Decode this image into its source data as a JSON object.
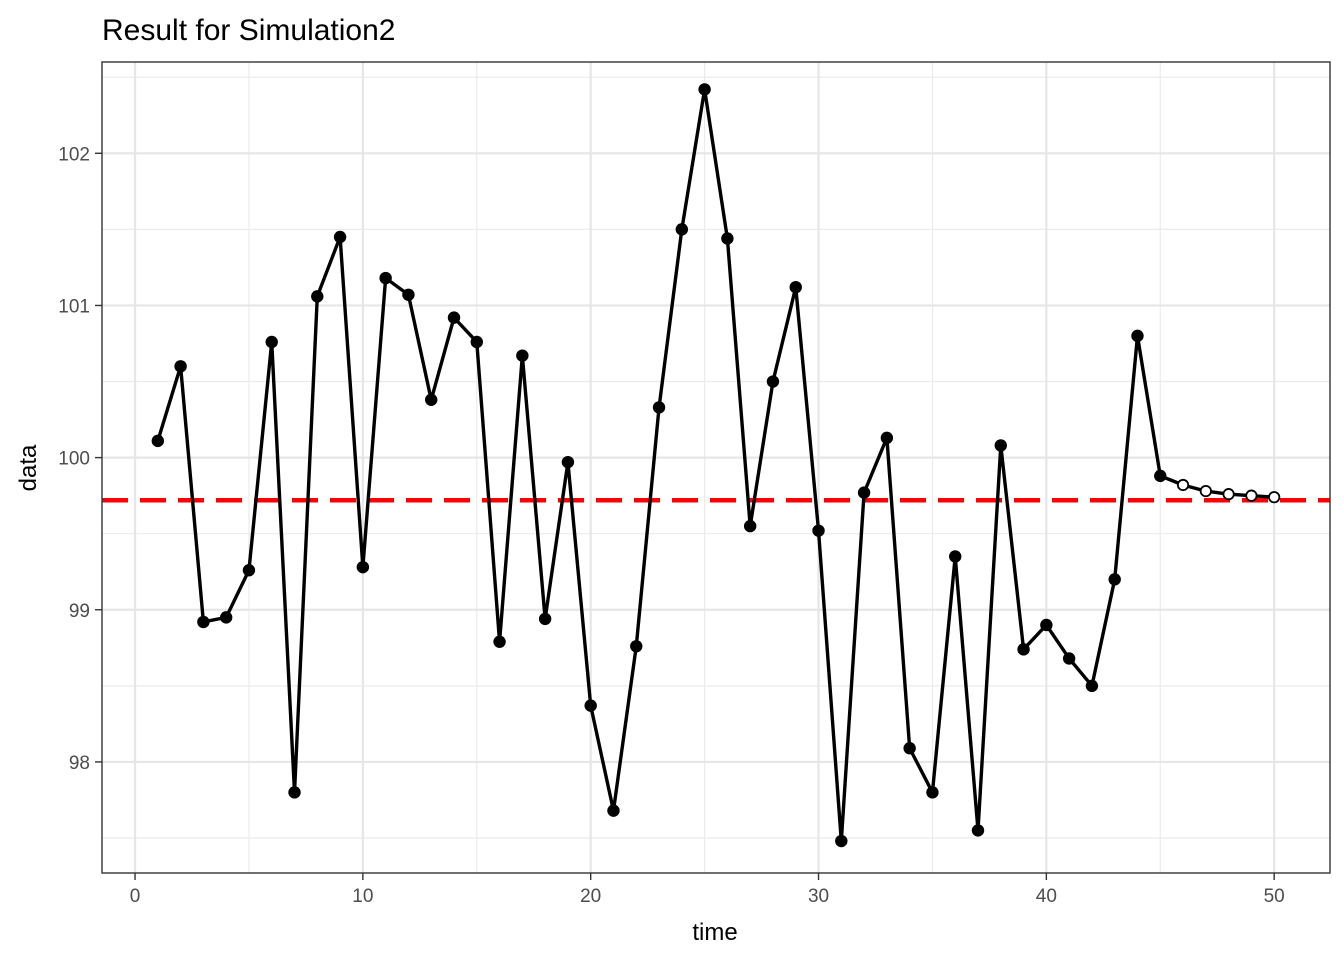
{
  "chart_data": {
    "type": "line",
    "title": "Result for Simulation2",
    "xlabel": "time",
    "ylabel": "data",
    "xlim": [
      -1.45,
      52.45
    ],
    "ylim": [
      97.27,
      102.6
    ],
    "x_ticks": [
      0,
      10,
      20,
      30,
      40,
      50
    ],
    "x_tick_labels": [
      "0",
      "10",
      "20",
      "30",
      "40",
      "50"
    ],
    "x_minor_ticks": [
      5,
      15,
      25,
      35,
      45
    ],
    "y_ticks": [
      98,
      99,
      100,
      101,
      102
    ],
    "y_tick_labels": [
      "98",
      "99",
      "100",
      "101",
      "102"
    ],
    "y_minor_ticks": [
      97.5,
      98.5,
      99.5,
      100.5,
      101.5,
      102.5
    ],
    "grid": true,
    "theme": "bw",
    "reference_line": {
      "y": 99.72,
      "style": "dashed",
      "color": "#ff0000"
    },
    "series": [
      {
        "marker": "filled-circle",
        "color": "#000000",
        "x": [
          1,
          2,
          3,
          4,
          5,
          6,
          7,
          8,
          9,
          10,
          11,
          12,
          13,
          14,
          15,
          16,
          17,
          18,
          19,
          20,
          21,
          22,
          23,
          24,
          25,
          26,
          27,
          28,
          29,
          30,
          31,
          32,
          33,
          34,
          35,
          36,
          37,
          38,
          39,
          40,
          41,
          42,
          43,
          44,
          45
        ],
        "y": [
          100.11,
          100.6,
          98.92,
          98.95,
          99.26,
          100.76,
          97.8,
          101.06,
          101.45,
          99.28,
          101.18,
          101.07,
          100.38,
          100.92,
          100.76,
          98.79,
          100.67,
          98.94,
          99.97,
          98.37,
          97.68,
          98.76,
          100.33,
          101.5,
          102.42,
          101.44,
          99.55,
          100.5,
          101.12,
          99.52,
          97.48,
          99.77,
          100.13,
          98.09,
          97.8,
          99.35,
          97.55,
          100.08,
          98.74,
          98.9,
          98.68,
          98.5,
          99.2,
          100.8,
          99.88
        ]
      },
      {
        "marker": "open-circle",
        "color": "#000000",
        "x": [
          45,
          46,
          47,
          48,
          49,
          50
        ],
        "y": [
          99.88,
          99.82,
          99.78,
          99.76,
          99.75,
          99.74
        ]
      }
    ]
  }
}
